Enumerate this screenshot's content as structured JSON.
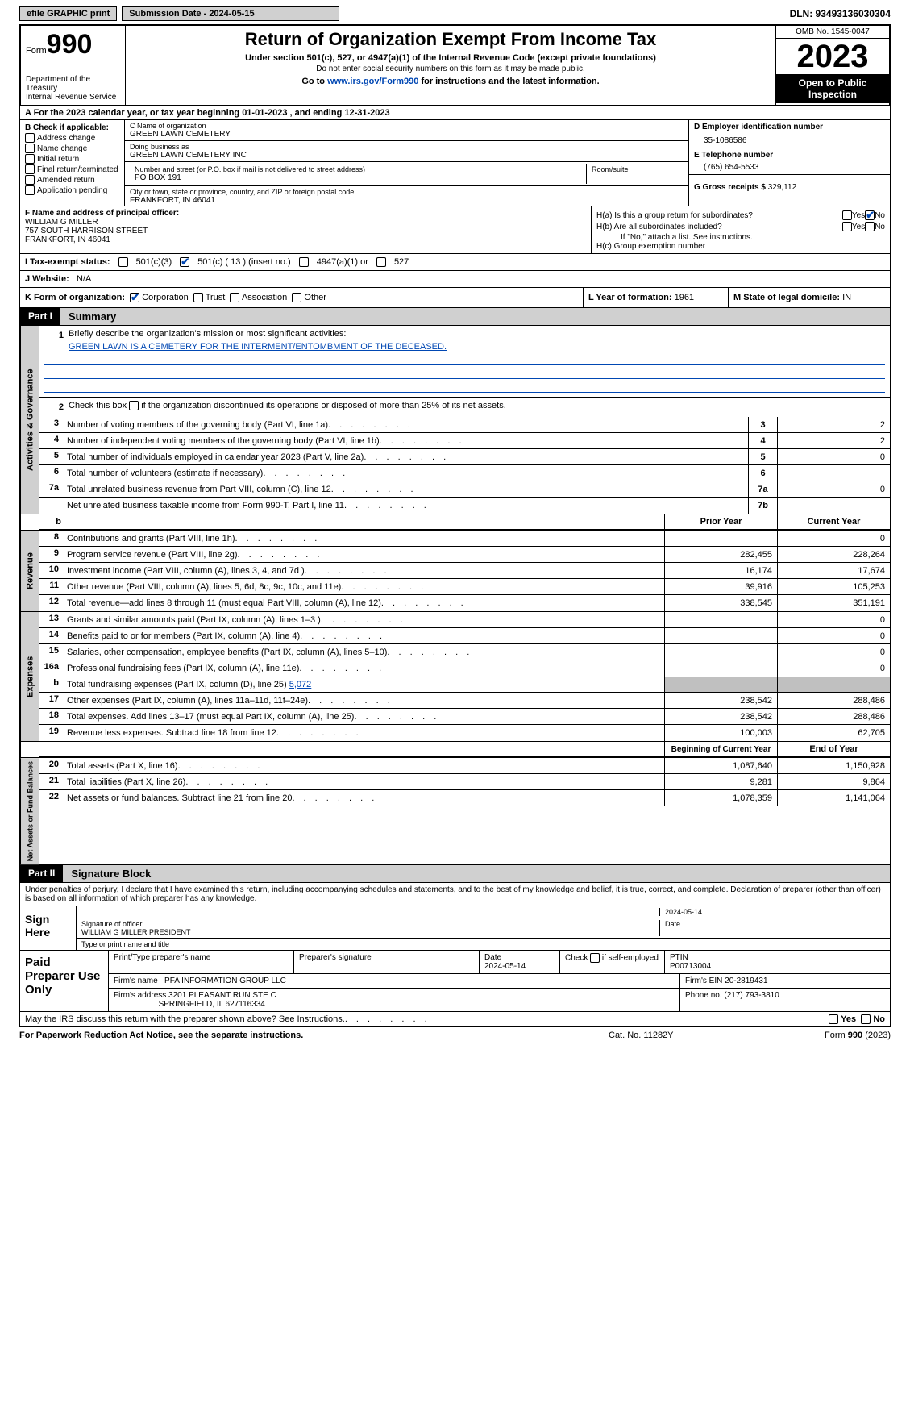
{
  "topbar": {
    "efile": "efile GRAPHIC print",
    "submission": "Submission Date - 2024-05-15",
    "dln": "DLN: 93493136030304"
  },
  "header": {
    "form_word": "Form",
    "form_num": "990",
    "dept": "Department of the Treasury\nInternal Revenue Service",
    "title": "Return of Organization Exempt From Income Tax",
    "sub": "Under section 501(c), 527, or 4947(a)(1) of the Internal Revenue Code (except private foundations)",
    "note": "Do not enter social security numbers on this form as it may be made public.",
    "goto_pre": "Go to ",
    "goto_link": "www.irs.gov/Form990",
    "goto_post": " for instructions and the latest information.",
    "omb": "OMB No. 1545-0047",
    "year": "2023",
    "inspect": "Open to Public Inspection"
  },
  "row_a": "A For the 2023 calendar year, or tax year beginning 01-01-2023   , and ending 12-31-2023",
  "b": {
    "hdr": "B Check if applicable:",
    "items": [
      "Address change",
      "Name change",
      "Initial return",
      "Final return/terminated",
      "Amended return",
      "Application pending"
    ]
  },
  "c": {
    "name_lbl": "C Name of organization",
    "name": "GREEN LAWN CEMETERY",
    "dba_lbl": "Doing business as",
    "dba": "GREEN LAWN CEMETERY INC",
    "addr_lbl": "Number and street (or P.O. box if mail is not delivered to street address)",
    "addr": "PO BOX 191",
    "room_lbl": "Room/suite",
    "city_lbl": "City or town, state or province, country, and ZIP or foreign postal code",
    "city": "FRANKFORT, IN  46041"
  },
  "d": {
    "ein_lbl": "D Employer identification number",
    "ein": "35-1086586",
    "tel_lbl": "E Telephone number",
    "tel": "(765) 654-5533",
    "gross_lbl": "G Gross receipts $",
    "gross": "329,112"
  },
  "f": {
    "lbl": "F  Name and address of principal officer:",
    "name": "WILLIAM G MILLER",
    "addr1": "757 SOUTH HARRISON STREET",
    "addr2": "FRANKFORT, IN  46041"
  },
  "h": {
    "ha": "H(a)  Is this a group return for subordinates?",
    "hb": "H(b)  Are all subordinates included?",
    "hb_note": "If \"No,\" attach a list. See instructions.",
    "hc": "H(c)  Group exemption number",
    "yes": "Yes",
    "no": "No"
  },
  "i": {
    "lbl": "I  Tax-exempt status:",
    "opt1": "501(c)(3)",
    "opt2": "501(c) ( 13 ) (insert no.)",
    "opt3": "4947(a)(1) or",
    "opt4": "527"
  },
  "j": {
    "lbl": "J  Website:",
    "val": "N/A"
  },
  "k": {
    "lbl": "K Form of organization:",
    "opts": [
      "Corporation",
      "Trust",
      "Association",
      "Other"
    ],
    "l_lbl": "L Year of formation:",
    "l_val": "1961",
    "m_lbl": "M State of legal domicile:",
    "m_val": "IN"
  },
  "part1": {
    "num": "Part I",
    "title": "Summary"
  },
  "governance": {
    "label": "Activities & Governance",
    "line1_lbl": "Briefly describe the organization's mission or most significant activities:",
    "line1_val": "GREEN LAWN IS A CEMETERY FOR THE INTERMENT/ENTOMBMENT OF THE DECEASED.",
    "line2": "Check this box       if the organization discontinued its operations or disposed of more than 25% of its net assets.",
    "rows": [
      {
        "n": "3",
        "t": "Number of voting members of the governing body (Part VI, line 1a)",
        "box": "3",
        "v": "2"
      },
      {
        "n": "4",
        "t": "Number of independent voting members of the governing body (Part VI, line 1b)",
        "box": "4",
        "v": "2"
      },
      {
        "n": "5",
        "t": "Total number of individuals employed in calendar year 2023 (Part V, line 2a)",
        "box": "5",
        "v": "0"
      },
      {
        "n": "6",
        "t": "Total number of volunteers (estimate if necessary)",
        "box": "6",
        "v": ""
      },
      {
        "n": "7a",
        "t": "Total unrelated business revenue from Part VIII, column (C), line 12",
        "box": "7a",
        "v": "0"
      },
      {
        "n": "",
        "t": "Net unrelated business taxable income from Form 990-T, Part I, line 11",
        "box": "7b",
        "v": ""
      }
    ]
  },
  "cols": {
    "b": "b",
    "prior": "Prior Year",
    "current": "Current Year",
    "boy": "Beginning of Current Year",
    "eoy": "End of Year"
  },
  "revenue": {
    "label": "Revenue",
    "rows": [
      {
        "n": "8",
        "t": "Contributions and grants (Part VIII, line 1h)",
        "p": "",
        "c": "0"
      },
      {
        "n": "9",
        "t": "Program service revenue (Part VIII, line 2g)",
        "p": "282,455",
        "c": "228,264"
      },
      {
        "n": "10",
        "t": "Investment income (Part VIII, column (A), lines 3, 4, and 7d )",
        "p": "16,174",
        "c": "17,674"
      },
      {
        "n": "11",
        "t": "Other revenue (Part VIII, column (A), lines 5, 6d, 8c, 9c, 10c, and 11e)",
        "p": "39,916",
        "c": "105,253"
      },
      {
        "n": "12",
        "t": "Total revenue—add lines 8 through 11 (must equal Part VIII, column (A), line 12)",
        "p": "338,545",
        "c": "351,191"
      }
    ]
  },
  "expenses": {
    "label": "Expenses",
    "rows": [
      {
        "n": "13",
        "t": "Grants and similar amounts paid (Part IX, column (A), lines 1–3 )",
        "p": "",
        "c": "0"
      },
      {
        "n": "14",
        "t": "Benefits paid to or for members (Part IX, column (A), line 4)",
        "p": "",
        "c": "0"
      },
      {
        "n": "15",
        "t": "Salaries, other compensation, employee benefits (Part IX, column (A), lines 5–10)",
        "p": "",
        "c": "0"
      },
      {
        "n": "16a",
        "t": "Professional fundraising fees (Part IX, column (A), line 11e)",
        "p": "",
        "c": "0"
      }
    ],
    "line_b": "Total fundraising expenses (Part IX, column (D), line 25)",
    "line_b_val": "5,072",
    "rows2": [
      {
        "n": "17",
        "t": "Other expenses (Part IX, column (A), lines 11a–11d, 11f–24e)",
        "p": "238,542",
        "c": "288,486"
      },
      {
        "n": "18",
        "t": "Total expenses. Add lines 13–17 (must equal Part IX, column (A), line 25)",
        "p": "238,542",
        "c": "288,486"
      },
      {
        "n": "19",
        "t": "Revenue less expenses. Subtract line 18 from line 12",
        "p": "100,003",
        "c": "62,705"
      }
    ]
  },
  "netassets": {
    "label": "Net Assets or Fund Balances",
    "rows": [
      {
        "n": "20",
        "t": "Total assets (Part X, line 16)",
        "p": "1,087,640",
        "c": "1,150,928"
      },
      {
        "n": "21",
        "t": "Total liabilities (Part X, line 26)",
        "p": "9,281",
        "c": "9,864"
      },
      {
        "n": "22",
        "t": "Net assets or fund balances. Subtract line 21 from line 20",
        "p": "1,078,359",
        "c": "1,141,064"
      }
    ]
  },
  "part2": {
    "num": "Part II",
    "title": "Signature Block"
  },
  "sig": {
    "decl": "Under penalties of perjury, I declare that I have examined this return, including accompanying schedules and statements, and to the best of my knowledge and belief, it is true, correct, and complete. Declaration of preparer (other than officer) is based on all information of which preparer has any knowledge.",
    "sign_here": "Sign Here",
    "sig_officer": "Signature of officer",
    "officer": "WILLIAM G MILLER  PRESIDENT",
    "type_name": "Type or print name and title",
    "date_lbl": "Date",
    "date": "2024-05-14"
  },
  "prep": {
    "title": "Paid Preparer Use Only",
    "name_lbl": "Print/Type preparer's name",
    "sig_lbl": "Preparer's signature",
    "date_lbl": "Date",
    "date": "2024-05-14",
    "self_lbl": "Check        if self-employed",
    "ptin_lbl": "PTIN",
    "ptin": "P00713004",
    "firm_name_lbl": "Firm's name",
    "firm_name": "PFA INFORMATION GROUP LLC",
    "firm_ein_lbl": "Firm's EIN",
    "firm_ein": "20-2819431",
    "firm_addr_lbl": "Firm's address",
    "firm_addr1": "3201 PLEASANT RUN STE C",
    "firm_addr2": "SPRINGFIELD, IL  627116334",
    "phone_lbl": "Phone no.",
    "phone": "(217) 793-3810"
  },
  "footer": {
    "discuss": "May the IRS discuss this return with the preparer shown above? See Instructions.",
    "yes": "Yes",
    "no": "No",
    "pra": "For Paperwork Reduction Act Notice, see the separate instructions.",
    "cat": "Cat. No. 11282Y",
    "form": "Form 990 (2023)"
  }
}
